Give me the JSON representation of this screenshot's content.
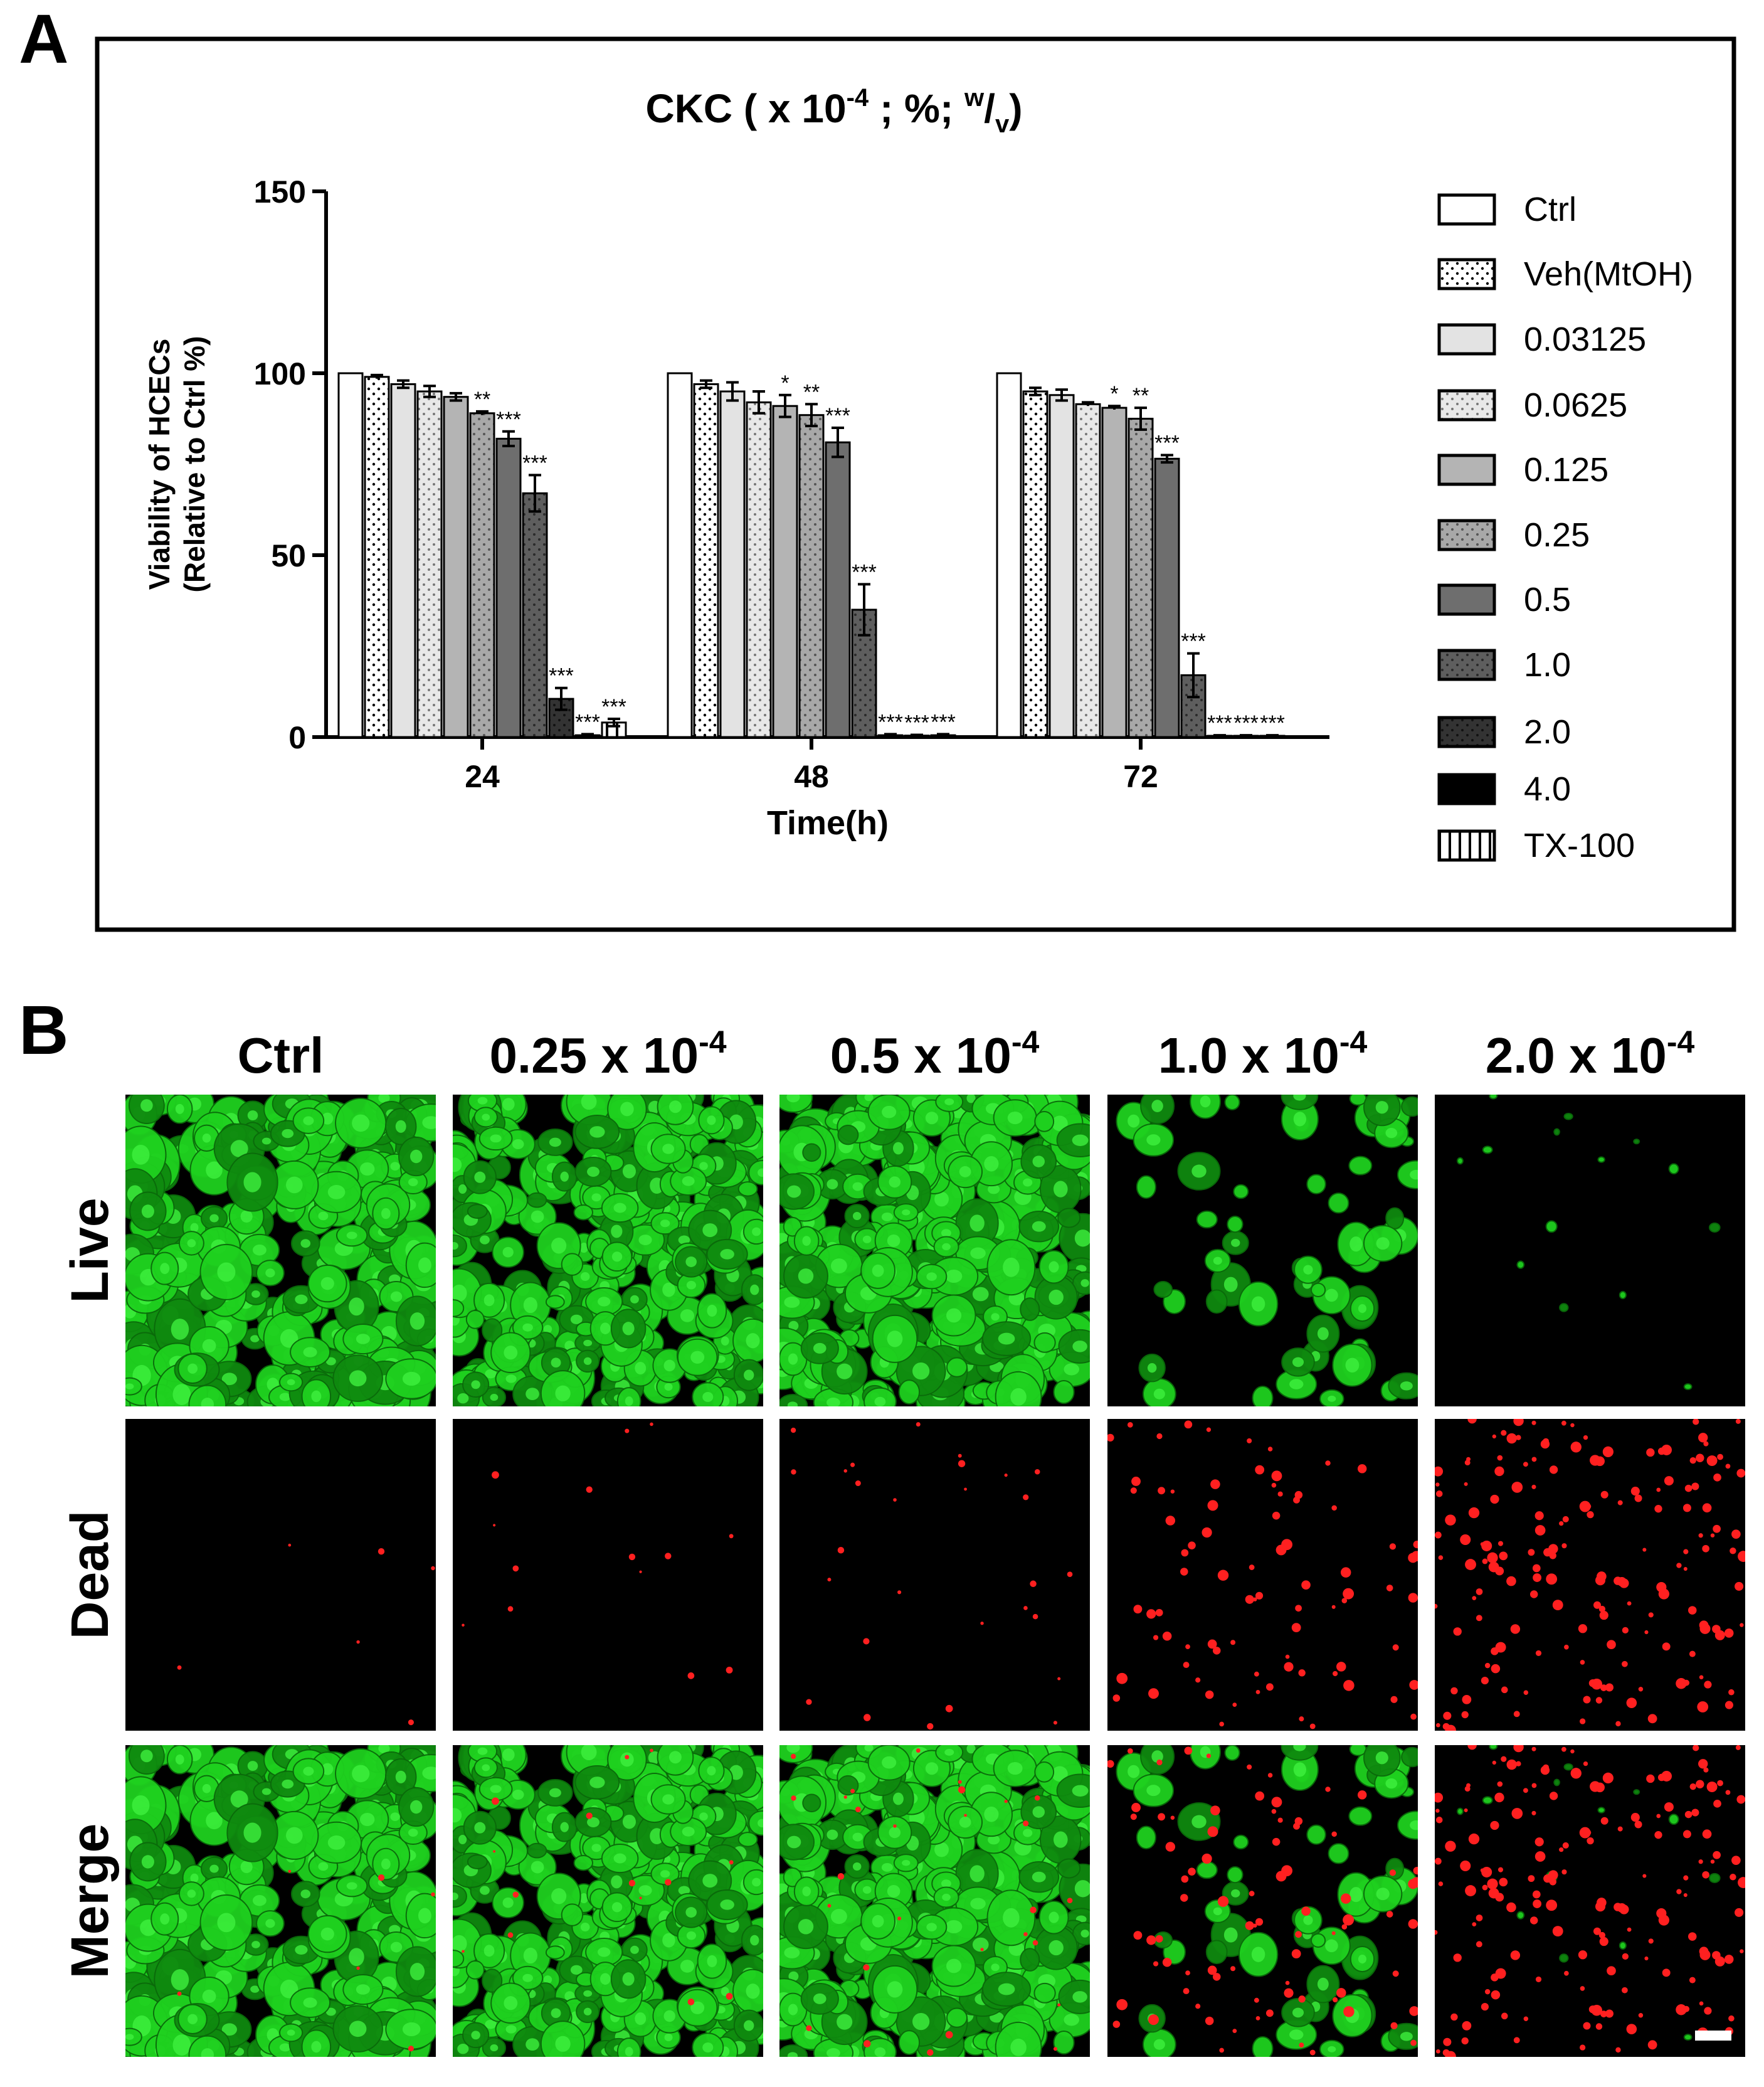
{
  "panel_a": {
    "letter": "A",
    "title": {
      "main": "CKC ( x 10",
      "exp": "-4",
      "mid": " ; %; ",
      "w": "w",
      "slash": "/",
      "v": "v",
      "end": ")"
    }
  },
  "panel_b": {
    "letter": "B",
    "columns": [
      {
        "base": "Ctrl",
        "exp": ""
      },
      {
        "base": "0.25 x 10",
        "exp": "-4"
      },
      {
        "base": "0.5 x 10",
        "exp": "-4"
      },
      {
        "base": "1.0 x 10",
        "exp": "-4"
      },
      {
        "base": "2.0 x 10",
        "exp": "-4"
      }
    ],
    "rows": [
      "Live",
      "Dead",
      "Merge"
    ],
    "colors": {
      "live": "#1fd11f",
      "live_dark": "#0f8a0f",
      "dead": "#ff2020",
      "bg": "#000000"
    },
    "scale_bar": true
  },
  "chart_data": {
    "type": "bar",
    "xlabel": "Time(h)",
    "ylabel_line1": "Viability of HCECs",
    "ylabel_line2": "(Relative to Ctrl %)",
    "categories": [
      "24",
      "48",
      "72"
    ],
    "ylim": [
      0,
      150
    ],
    "yticks": [
      0,
      50,
      100,
      150
    ],
    "legend_position": "right",
    "series": [
      {
        "name": "Ctrl",
        "values": [
          100,
          100,
          100
        ],
        "errors": [
          0,
          0,
          0
        ],
        "sig": [
          "",
          "",
          ""
        ],
        "fill": "#ffffff",
        "pattern": "none"
      },
      {
        "name": "Veh(MtOH)",
        "values": [
          99,
          97,
          95
        ],
        "errors": [
          0.5,
          1,
          1
        ],
        "sig": [
          "",
          "",
          ""
        ],
        "fill": "#ffffff",
        "pattern": "dots"
      },
      {
        "name": "0.03125",
        "values": [
          97,
          95,
          94
        ],
        "errors": [
          1,
          2.5,
          1.5
        ],
        "sig": [
          "",
          "",
          ""
        ],
        "fill": "#e3e3e3",
        "pattern": "none"
      },
      {
        "name": "0.0625",
        "values": [
          95,
          92,
          91.5
        ],
        "errors": [
          1.5,
          3,
          0.5
        ],
        "sig": [
          "",
          "",
          ""
        ],
        "fill": "#e8e8e8",
        "pattern": "dots"
      },
      {
        "name": "0.125",
        "values": [
          93.5,
          91,
          90.5
        ],
        "errors": [
          1,
          3,
          0.5
        ],
        "sig": [
          "",
          "*",
          "*"
        ],
        "fill": "#b4b4b4",
        "pattern": "none"
      },
      {
        "name": "0.25",
        "values": [
          89,
          88.5,
          87.5
        ],
        "errors": [
          0.5,
          3,
          3
        ],
        "sig": [
          "**",
          "**",
          "**"
        ],
        "fill": "#a8a8a8",
        "pattern": "dots"
      },
      {
        "name": "0.5",
        "values": [
          82,
          81,
          76.5
        ],
        "errors": [
          2,
          4,
          1
        ],
        "sig": [
          "***",
          "***",
          "***"
        ],
        "fill": "#6e6e6e",
        "pattern": "none"
      },
      {
        "name": "1.0",
        "values": [
          67,
          35,
          17
        ],
        "errors": [
          5,
          7,
          6
        ],
        "sig": [
          "***",
          "***",
          "***"
        ],
        "fill": "#5e5e5e",
        "pattern": "dots"
      },
      {
        "name": "2.0",
        "values": [
          10.5,
          0.5,
          0.3
        ],
        "errors": [
          3,
          0.3,
          0.2
        ],
        "sig": [
          "***",
          "***",
          "***"
        ],
        "fill": "#333333",
        "pattern": "dots"
      },
      {
        "name": "4.0",
        "values": [
          0.5,
          0.4,
          0.3
        ],
        "errors": [
          0.3,
          0.2,
          0.2
        ],
        "sig": [
          "***",
          "***",
          "***"
        ],
        "fill": "#000000",
        "pattern": "none"
      },
      {
        "name": "TX-100",
        "values": [
          4,
          0.5,
          0.3
        ],
        "errors": [
          1,
          0.3,
          0.2
        ],
        "sig": [
          "***",
          "***",
          "***"
        ],
        "fill": "#ffffff",
        "pattern": "vstripes"
      }
    ]
  }
}
